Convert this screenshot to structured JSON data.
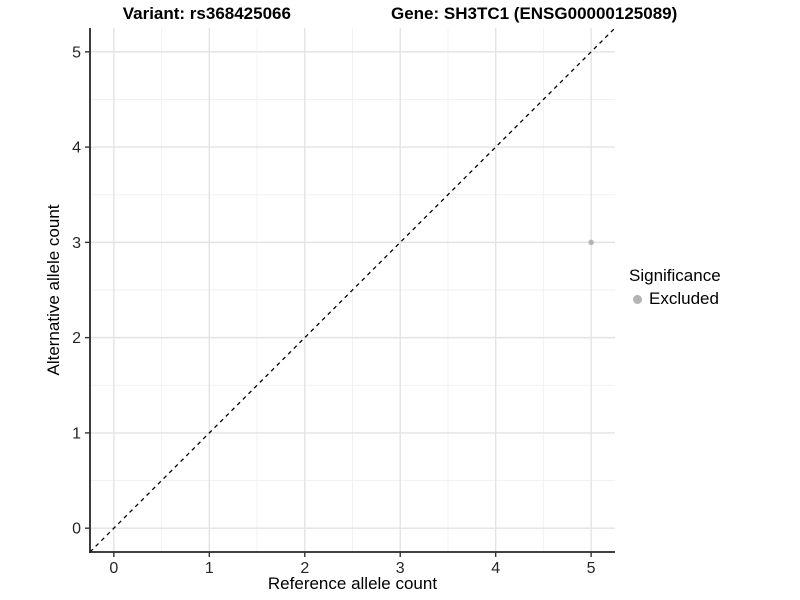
{
  "title_parts": {
    "variant": "Variant: rs368425066",
    "gene": "Gene: SH3TC1 (ENSG00000125089)"
  },
  "chart_data": {
    "type": "scatter",
    "title": "Variant: rs368425066    Gene: SH3TC1 (ENSG00000125089)",
    "xlabel": "Reference allele count",
    "ylabel": "Alternative allele count",
    "xlim": [
      -0.25,
      5.25
    ],
    "ylim": [
      -0.25,
      5.25
    ],
    "xticks": [
      0,
      1,
      2,
      3,
      4,
      5
    ],
    "yticks": [
      0,
      1,
      2,
      3,
      4,
      5
    ],
    "minor_ticks_x": [
      0.5,
      1.5,
      2.5,
      3.5,
      4.5
    ],
    "minor_ticks_y": [
      0.5,
      1.5,
      2.5,
      3.5,
      4.5
    ],
    "grid": "major+minor",
    "series": [
      {
        "name": "Excluded",
        "color": "#b3b3b3",
        "points": [
          {
            "x": 5,
            "y": 3
          }
        ]
      }
    ],
    "reference_line": {
      "type": "identity",
      "slope": 1,
      "intercept": 0,
      "line_style": "dashed",
      "color": "#000000"
    },
    "legend": {
      "title": "Significance",
      "position": "right",
      "entries": [
        {
          "label": "Excluded",
          "color": "#b3b3b3",
          "marker": "circle"
        }
      ]
    }
  },
  "colors": {
    "background": "#ffffff",
    "grid_major": "#e3e3e3",
    "grid_minor": "#f2f2f2",
    "axis_line": "#262626",
    "tick_mark": "#333333",
    "tick_label": "#262626",
    "point": "#b3b3b3"
  }
}
